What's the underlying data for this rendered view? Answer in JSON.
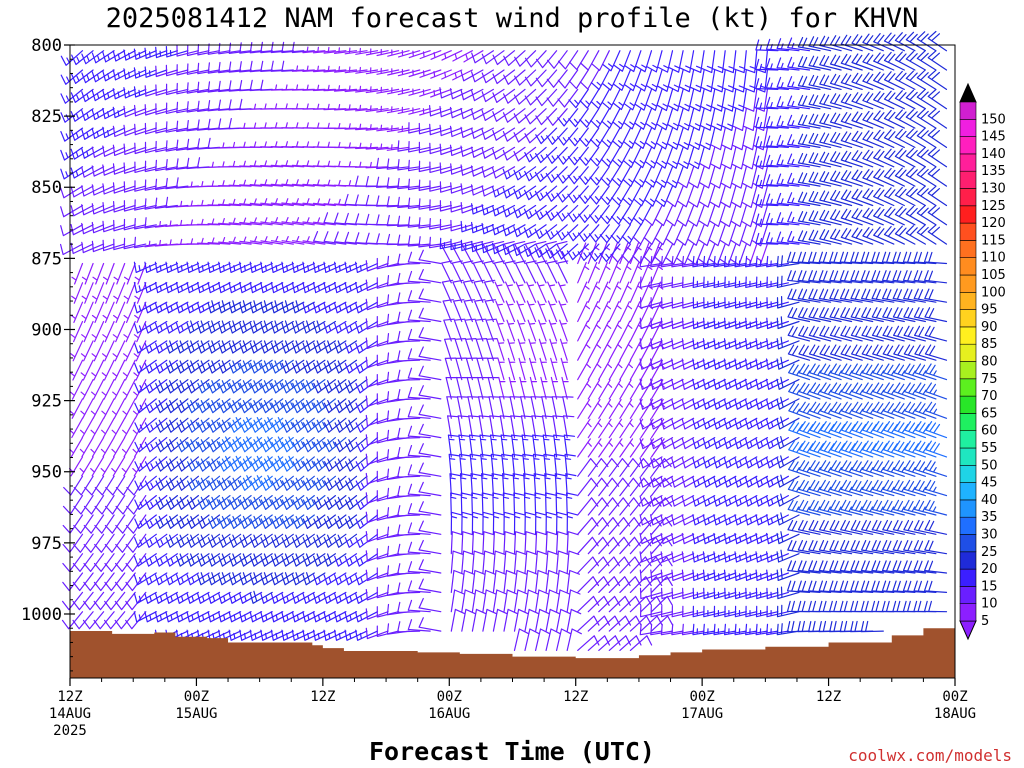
{
  "title": "2025081412 NAM forecast wind profile (kt) for KHVN",
  "credit": "coolwx.com/models",
  "chart_data": {
    "type": "wind-barb-time-height",
    "title": "2025081412 NAM forecast wind profile (kt) for KHVN",
    "xlabel": "Forecast Time (UTC)",
    "ylabel": "",
    "units": "kt",
    "x_range_hours": [
      0,
      84
    ],
    "y_range_hpa": [
      1022,
      800
    ],
    "y_axis_inverted": true,
    "y_ticks": [
      "800",
      "825",
      "850",
      "875",
      "900",
      "925",
      "950",
      "975",
      "1000"
    ],
    "x_ticks": [
      {
        "hour": 0,
        "lines": [
          "12Z",
          "14AUG",
          "2025"
        ]
      },
      {
        "hour": 12,
        "lines": [
          "00Z",
          "15AUG"
        ]
      },
      {
        "hour": 24,
        "lines": [
          "12Z"
        ]
      },
      {
        "hour": 36,
        "lines": [
          "00Z",
          "16AUG"
        ]
      },
      {
        "hour": 48,
        "lines": [
          "12Z"
        ]
      },
      {
        "hour": 60,
        "lines": [
          "00Z",
          "17AUG"
        ]
      },
      {
        "hour": 72,
        "lines": [
          "12Z"
        ]
      },
      {
        "hour": 84,
        "lines": [
          "00Z",
          "18AUG"
        ]
      }
    ],
    "colorbar": {
      "labels": [
        "5",
        "10",
        "15",
        "20",
        "25",
        "30",
        "35",
        "40",
        "45",
        "50",
        "55",
        "60",
        "65",
        "70",
        "75",
        "80",
        "85",
        "90",
        "95",
        "100",
        "105",
        "110",
        "115",
        "120",
        "125",
        "130",
        "135",
        "140",
        "145",
        "150"
      ],
      "colors": [
        "#8c1fff",
        "#6a1fff",
        "#3b1fff",
        "#1f2bd9",
        "#1f4fe6",
        "#1f6fff",
        "#1f94ff",
        "#1fb3ff",
        "#1fd4e6",
        "#1fe6c0",
        "#1ff0a0",
        "#1ff060",
        "#28e628",
        "#5cf01f",
        "#a8f01f",
        "#e6f01f",
        "#fff01f",
        "#ffd21f",
        "#ffb31f",
        "#ff9a1f",
        "#ff8c1f",
        "#ff701f",
        "#ff501f",
        "#ff1f1f",
        "#ff1f4a",
        "#ff1f70",
        "#ff1f9a",
        "#ff1fbe",
        "#f01fe0",
        "#d01fd0"
      ]
    },
    "terrain_color": "#a0522d",
    "terrain_surface_hpa": [
      {
        "hour": 0,
        "p": 1006
      },
      {
        "hour": 4,
        "p": 1007
      },
      {
        "hour": 8,
        "p": 1006.5
      },
      {
        "hour": 10,
        "p": 1008
      },
      {
        "hour": 13,
        "p": 1008.5
      },
      {
        "hour": 15,
        "p": 1010
      },
      {
        "hour": 17,
        "p": 1010
      },
      {
        "hour": 23,
        "p": 1011
      },
      {
        "hour": 24,
        "p": 1012
      },
      {
        "hour": 26,
        "p": 1013
      },
      {
        "hour": 33,
        "p": 1013.5
      },
      {
        "hour": 37,
        "p": 1014
      },
      {
        "hour": 42,
        "p": 1015
      },
      {
        "hour": 48,
        "p": 1015.5
      },
      {
        "hour": 54,
        "p": 1014.5
      },
      {
        "hour": 57,
        "p": 1013.5
      },
      {
        "hour": 60,
        "p": 1012.5
      },
      {
        "hour": 66,
        "p": 1011.5
      },
      {
        "hour": 72,
        "p": 1010
      },
      {
        "hour": 78,
        "p": 1007.5
      },
      {
        "hour": 81,
        "p": 1005
      },
      {
        "hour": 84,
        "p": 1004.5
      }
    ],
    "grid": false
  }
}
